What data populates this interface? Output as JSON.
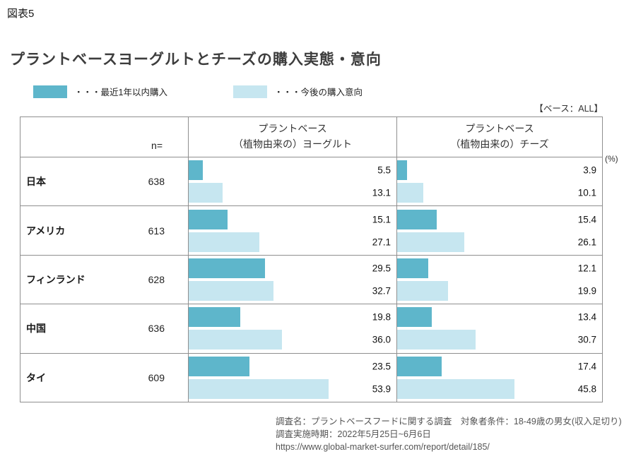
{
  "figure_label": "図表5",
  "title": "プラントベースヨーグルトとチーズの購入実態・意向",
  "legend": [
    {
      "label": "・・・最近1年以内購入",
      "color": "#5eb6cb"
    },
    {
      "label": "・・・今後の購入意向",
      "color": "#c6e6f0"
    }
  ],
  "base_note": "【ベース：ALL】",
  "unit_label": "(%)",
  "n_label": "n=",
  "chart_data": {
    "type": "bar",
    "orientation": "horizontal",
    "categories": [
      "日本",
      "アメリカ",
      "フィンランド",
      "中国",
      "タイ"
    ],
    "n_values": [
      638,
      613,
      628,
      636,
      609
    ],
    "xmax": 80,
    "groups": [
      {
        "label_line1": "プラントベース",
        "label_line2": "（植物由来の）ヨーグルト",
        "series": [
          {
            "name": "最近1年以内購入",
            "values": [
              5.5,
              15.1,
              29.5,
              19.8,
              23.5
            ]
          },
          {
            "name": "今後の購入意向",
            "values": [
              13.1,
              27.1,
              32.7,
              36.0,
              53.9
            ]
          }
        ]
      },
      {
        "label_line1": "プラントベース",
        "label_line2": "（植物由来の）チーズ",
        "series": [
          {
            "name": "最近1年以内購入",
            "values": [
              3.9,
              15.4,
              12.1,
              13.4,
              17.4
            ]
          },
          {
            "name": "今後の購入意向",
            "values": [
              10.1,
              26.1,
              19.9,
              30.7,
              45.8
            ]
          }
        ]
      }
    ]
  },
  "footer": {
    "line1": "調査名：プラントベースフードに関する調査　対象者条件：18-49歳の男女(収入足切り)",
    "line2": "調査実施時期：2022年5月25日~6月6日",
    "line3": "https://www.global-market-surfer.com/report/detail/185/"
  }
}
